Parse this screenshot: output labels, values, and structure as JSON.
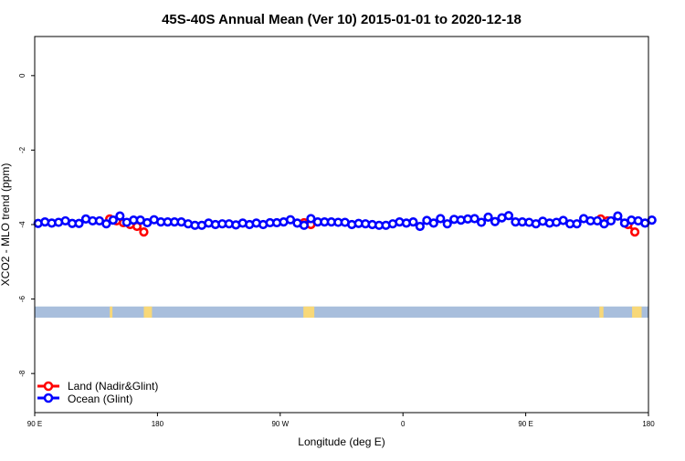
{
  "chart_data": {
    "type": "line",
    "title": "45S-40S Annual Mean (Ver 10)   2015-01-01 to 2020-12-18",
    "xlabel": "Longitude (deg E)",
    "ylabel": "XCO2 - MLO trend (ppm)",
    "xlim": [
      90,
      540
    ],
    "ylim": [
      -9.05,
      1.05
    ],
    "xticks": [
      {
        "v": 90,
        "label": "90 E"
      },
      {
        "v": 180,
        "label": "180"
      },
      {
        "v": 270,
        "label": "90 W"
      },
      {
        "v": 360,
        "label": "0"
      },
      {
        "v": 450,
        "label": "90 E"
      },
      {
        "v": 540,
        "label": "180"
      }
    ],
    "yticks": [
      {
        "v": 0,
        "label": "0"
      },
      {
        "v": -2,
        "label": "-2"
      },
      {
        "v": -4,
        "label": "-4"
      },
      {
        "v": -6,
        "label": "-6"
      },
      {
        "v": -8,
        "label": "-8"
      }
    ],
    "legend_position": "bottom-left",
    "series": [
      {
        "name": "Land (Nadir&Glint)",
        "color": "#ff0000",
        "x": [
          145,
          150,
          155,
          160,
          165,
          170,
          287.5,
          292.5,
          505,
          510,
          525,
          530
        ],
        "y": [
          -3.85,
          -3.9,
          -3.95,
          -4.0,
          -4.05,
          -4.2,
          -3.95,
          -4.0,
          -3.85,
          -3.9,
          -4.0,
          -4.2
        ]
      },
      {
        "name": "Ocean (Glint)",
        "color": "#0000ff",
        "x_start": 92.5,
        "x_step": 5,
        "y": [
          -3.97,
          -3.93,
          -3.96,
          -3.94,
          -3.9,
          -3.97,
          -3.97,
          -3.85,
          -3.9,
          -3.9,
          -3.98,
          -3.88,
          -3.77,
          -3.94,
          -3.88,
          -3.88,
          -3.95,
          -3.87,
          -3.93,
          -3.93,
          -3.93,
          -3.93,
          -3.98,
          -4.02,
          -4.02,
          -3.96,
          -4.0,
          -3.98,
          -3.98,
          -4.01,
          -3.96,
          -4.0,
          -3.96,
          -4.0,
          -3.95,
          -3.95,
          -3.93,
          -3.87,
          -3.96,
          -4.02,
          -3.84,
          -3.93,
          -3.93,
          -3.93,
          -3.94,
          -3.94,
          -4.0,
          -3.97,
          -3.98,
          -4.0,
          -4.02,
          -4.02,
          -3.98,
          -3.93,
          -3.96,
          -3.93,
          -4.05,
          -3.89,
          -3.96,
          -3.84,
          -3.98,
          -3.86,
          -3.88,
          -3.85,
          -3.84,
          -3.94,
          -3.8,
          -3.92,
          -3.82,
          -3.76,
          -3.93,
          -3.93,
          -3.94,
          -3.98,
          -3.91,
          -3.96,
          -3.94,
          -3.89,
          -3.98,
          -3.98,
          -3.84,
          -3.9,
          -3.9,
          -3.98,
          -3.9,
          -3.77,
          -3.96,
          -3.88,
          -3.9,
          -3.96,
          -3.88
        ]
      },
      {
        "name": "land-ocean mask",
        "band_y": [
          -6.2,
          -6.5
        ],
        "ocean_color": "#a8bedc",
        "land_color": "#f8d878",
        "land_ranges": [
          [
            145,
            147
          ],
          [
            170,
            176
          ],
          [
            287,
            295
          ],
          [
            504,
            507
          ],
          [
            528,
            535
          ]
        ]
      }
    ]
  }
}
